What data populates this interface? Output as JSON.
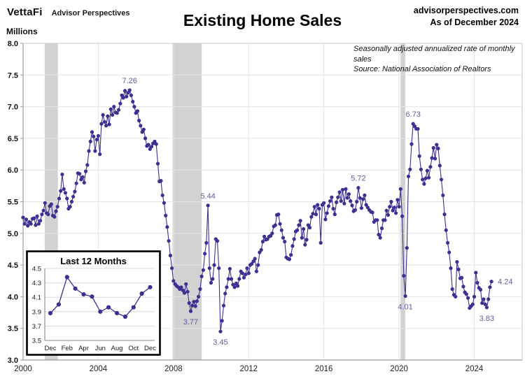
{
  "header": {
    "brand": "VettaFi",
    "brand_sub": "Advisor Perspectives",
    "site": "advisorperspectives.com",
    "as_of": "As of December 2024"
  },
  "chart_data": {
    "type": "line",
    "title": "Existing Home Sales",
    "ylabel": "Millions",
    "note_line1": "Seasonally adjusted annualized rate of monthly sales",
    "note_line2": "Source: National Association of Realtors",
    "ylim": [
      3.0,
      8.0
    ],
    "ytick_step": 0.5,
    "xticks": [
      2000,
      2004,
      2008,
      2012,
      2016,
      2020,
      2024
    ],
    "x_domain": [
      2000,
      2026.55
    ],
    "grid": true,
    "legend_position": "none",
    "series_color": "#3b3191",
    "callout_color": "#5e5f9e",
    "recession_band_color": "#d2d2d2",
    "recessions": [
      [
        2001.15,
        2001.85
      ],
      [
        2007.95,
        2009.5
      ],
      [
        2020.08,
        2020.33
      ]
    ],
    "series": [
      {
        "name": "Existing Home Sales (millions, seasonally adjusted annual rate)",
        "start_month": "2000-01",
        "frequency": "monthly",
        "values": [
          5.25,
          5.15,
          5.22,
          5.12,
          5.18,
          5.15,
          5.23,
          5.24,
          5.13,
          5.27,
          5.15,
          5.2,
          5.3,
          5.36,
          5.48,
          5.32,
          5.3,
          5.43,
          5.46,
          5.28,
          5.26,
          5.35,
          5.42,
          5.55,
          5.67,
          5.93,
          5.7,
          5.64,
          5.55,
          5.39,
          5.42,
          5.5,
          5.58,
          5.66,
          5.79,
          5.95,
          5.94,
          5.85,
          5.89,
          5.8,
          5.98,
          6.08,
          6.3,
          6.45,
          6.6,
          6.53,
          6.3,
          6.48,
          6.54,
          6.25,
          6.73,
          6.87,
          6.76,
          6.7,
          6.85,
          6.72,
          6.96,
          6.87,
          7.0,
          6.91,
          6.9,
          6.95,
          7.05,
          7.18,
          7.14,
          7.25,
          7.16,
          7.22,
          7.26,
          7.18,
          7.08,
          7.0,
          6.9,
          6.93,
          6.78,
          6.7,
          6.6,
          6.64,
          6.5,
          6.38,
          6.4,
          6.33,
          6.37,
          6.42,
          6.45,
          6.41,
          6.1,
          5.82,
          5.83,
          5.6,
          5.48,
          5.28,
          5.1,
          4.88,
          4.65,
          4.45,
          4.25,
          4.2,
          4.17,
          4.15,
          4.12,
          4.15,
          4.1,
          4.06,
          4.2,
          4.08,
          3.9,
          3.77,
          3.86,
          3.92,
          3.85,
          3.93,
          4.0,
          4.12,
          4.32,
          4.42,
          4.68,
          4.85,
          5.44,
          4.45,
          4.22,
          4.28,
          4.5,
          4.91,
          4.88,
          4.45,
          3.45,
          3.62,
          3.86,
          4.05,
          4.15,
          4.28,
          4.44,
          4.28,
          4.19,
          4.15,
          4.21,
          4.17,
          4.28,
          4.4,
          4.37,
          4.3,
          4.35,
          4.45,
          4.37,
          4.5,
          4.52,
          4.56,
          4.6,
          4.4,
          4.5,
          4.7,
          4.74,
          4.87,
          4.95,
          4.9,
          4.91,
          4.95,
          4.96,
          5.0,
          5.11,
          5.13,
          5.29,
          5.3,
          5.15,
          5.05,
          4.93,
          4.87,
          4.62,
          4.6,
          4.59,
          4.66,
          4.8,
          4.91,
          5.03,
          5.05,
          5.13,
          5.2,
          4.93,
          5.07,
          4.82,
          4.9,
          5.13,
          5.09,
          5.26,
          5.31,
          5.42,
          5.3,
          5.45,
          5.39,
          4.85,
          5.45,
          5.48,
          5.22,
          5.32,
          5.43,
          5.51,
          5.57,
          5.39,
          5.3,
          5.49,
          5.57,
          5.65,
          5.51,
          5.69,
          5.47,
          5.7,
          5.56,
          5.62,
          5.51,
          5.44,
          5.35,
          5.37,
          5.5,
          5.72,
          5.56,
          5.4,
          5.54,
          5.6,
          5.45,
          5.41,
          5.37,
          5.34,
          5.33,
          5.18,
          5.21,
          5.21,
          4.98,
          4.93,
          5.08,
          5.21,
          5.21,
          5.36,
          5.29,
          5.42,
          5.5,
          5.36,
          5.41,
          5.32,
          5.53,
          5.42,
          5.7,
          5.27,
          4.33,
          4.01,
          4.77,
          5.9,
          6.01,
          6.41,
          6.73,
          6.69,
          6.65,
          6.65,
          6.22,
          6.01,
          5.85,
          5.78,
          5.87,
          5.99,
          5.88,
          6.05,
          6.19,
          6.35,
          6.18,
          6.4,
          6.34,
          6.07,
          5.85,
          5.6,
          5.3,
          5.05,
          4.85,
          4.7,
          4.45,
          4.12,
          4.03,
          4.0,
          4.55,
          4.43,
          4.29,
          4.3,
          4.16,
          4.07,
          4.04,
          3.98,
          3.82,
          3.85,
          3.88,
          4.0,
          4.38,
          4.22,
          4.14,
          4.11,
          3.9,
          3.96,
          3.88,
          3.83,
          3.96,
          4.15,
          4.24
        ]
      }
    ],
    "callouts": [
      {
        "label": "7.26",
        "month_index": 68,
        "position": "above"
      },
      {
        "label": "3.77",
        "month_index": 107,
        "position": "below"
      },
      {
        "label": "5.44",
        "month_index": 118,
        "position": "above"
      },
      {
        "label": "3.45",
        "month_index": 126,
        "position": "below"
      },
      {
        "label": "5.72",
        "month_index": 214,
        "position": "above"
      },
      {
        "label": "4.01",
        "month_index": 244,
        "position": "below"
      },
      {
        "label": "6.73",
        "month_index": 249,
        "position": "above"
      },
      {
        "label": "3.83",
        "month_index": 296,
        "position": "below"
      },
      {
        "label": "4.24",
        "month_index": 299,
        "position": "right"
      }
    ],
    "inset": {
      "title": "Last 12 Months",
      "ylim": [
        3.5,
        4.5
      ],
      "ytick_step": 0.2,
      "yticks": [
        4.5,
        4.3,
        4.1,
        3.9,
        3.7,
        3.5
      ],
      "x_labels": [
        "Dec",
        "Feb",
        "Apr",
        "Jun",
        "Aug",
        "Oct",
        "Dec"
      ],
      "values": [
        3.88,
        4.0,
        4.38,
        4.22,
        4.14,
        4.11,
        3.9,
        3.96,
        3.88,
        3.83,
        3.96,
        4.15,
        4.24
      ]
    }
  }
}
